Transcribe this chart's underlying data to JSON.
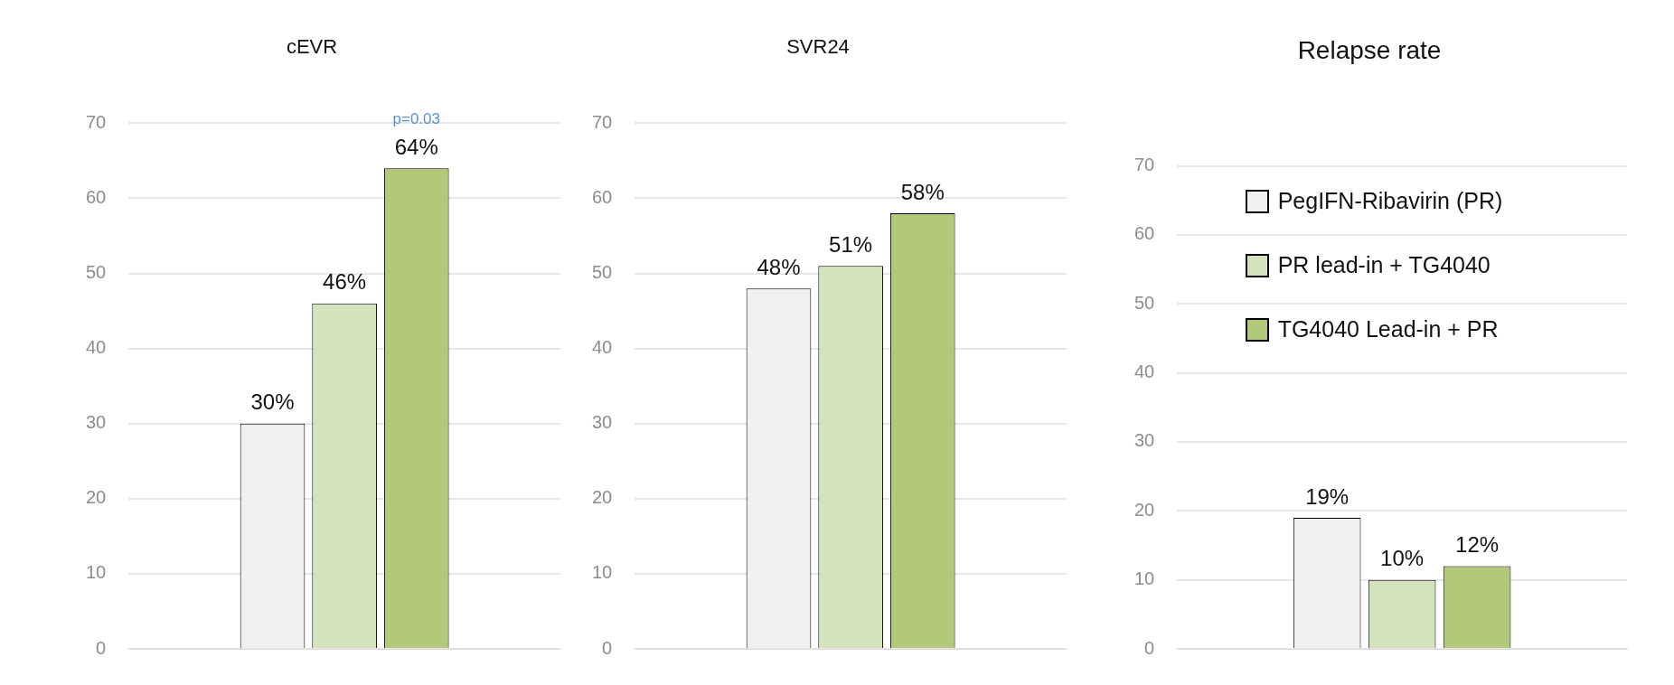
{
  "chart_data": [
    {
      "type": "bar",
      "title": "cEVR",
      "categories": [
        null
      ],
      "series": [
        {
          "color": "#f0f0f0",
          "values": [
            30
          ],
          "value_labels": [
            "30%"
          ]
        },
        {
          "color": "#d4e3bd",
          "values": [
            46
          ],
          "value_labels": [
            "46%"
          ]
        },
        {
          "color": "#b3c97a",
          "values": [
            64
          ],
          "value_labels": [
            "64%"
          ]
        }
      ],
      "ylim": [
        0,
        70
      ],
      "yticks": [
        0,
        10,
        20,
        30,
        40,
        50,
        60,
        70
      ],
      "grid": "y",
      "legend": false,
      "annotations": [
        "p=0.03"
      ]
    },
    {
      "type": "bar",
      "title": "SVR24",
      "categories": [
        null
      ],
      "series": [
        {
          "color": "#f0f0f0",
          "values": [
            48
          ],
          "value_labels": [
            "48%"
          ]
        },
        {
          "color": "#d4e3bd",
          "values": [
            51
          ],
          "value_labels": [
            "51%"
          ]
        },
        {
          "color": "#b3c97a",
          "values": [
            58
          ],
          "value_labels": [
            "58%"
          ]
        }
      ],
      "ylim": [
        0,
        70
      ],
      "yticks": [
        0,
        10,
        20,
        30,
        40,
        50,
        60,
        70
      ],
      "grid": "y",
      "legend": false
    },
    {
      "type": "bar",
      "title": "Relapse rate",
      "categories": [
        null
      ],
      "series": [
        {
          "name": "PegIFN-Ribavirin (PR)",
          "color": "#f0f0f0",
          "values": [
            19
          ],
          "value_labels": [
            "19%"
          ]
        },
        {
          "name": "PR lead-in + TG4040",
          "color": "#d4e3bd",
          "values": [
            10
          ],
          "value_labels": [
            "10%"
          ]
        },
        {
          "name": "TG4040 Lead-in + PR",
          "color": "#b3c97a",
          "values": [
            12
          ],
          "value_labels": [
            "12%"
          ]
        }
      ],
      "ylim": [
        0,
        70
      ],
      "yticks": [
        0,
        10,
        20,
        30,
        40,
        50,
        60,
        70
      ],
      "grid": "y",
      "legend": "top"
    }
  ]
}
